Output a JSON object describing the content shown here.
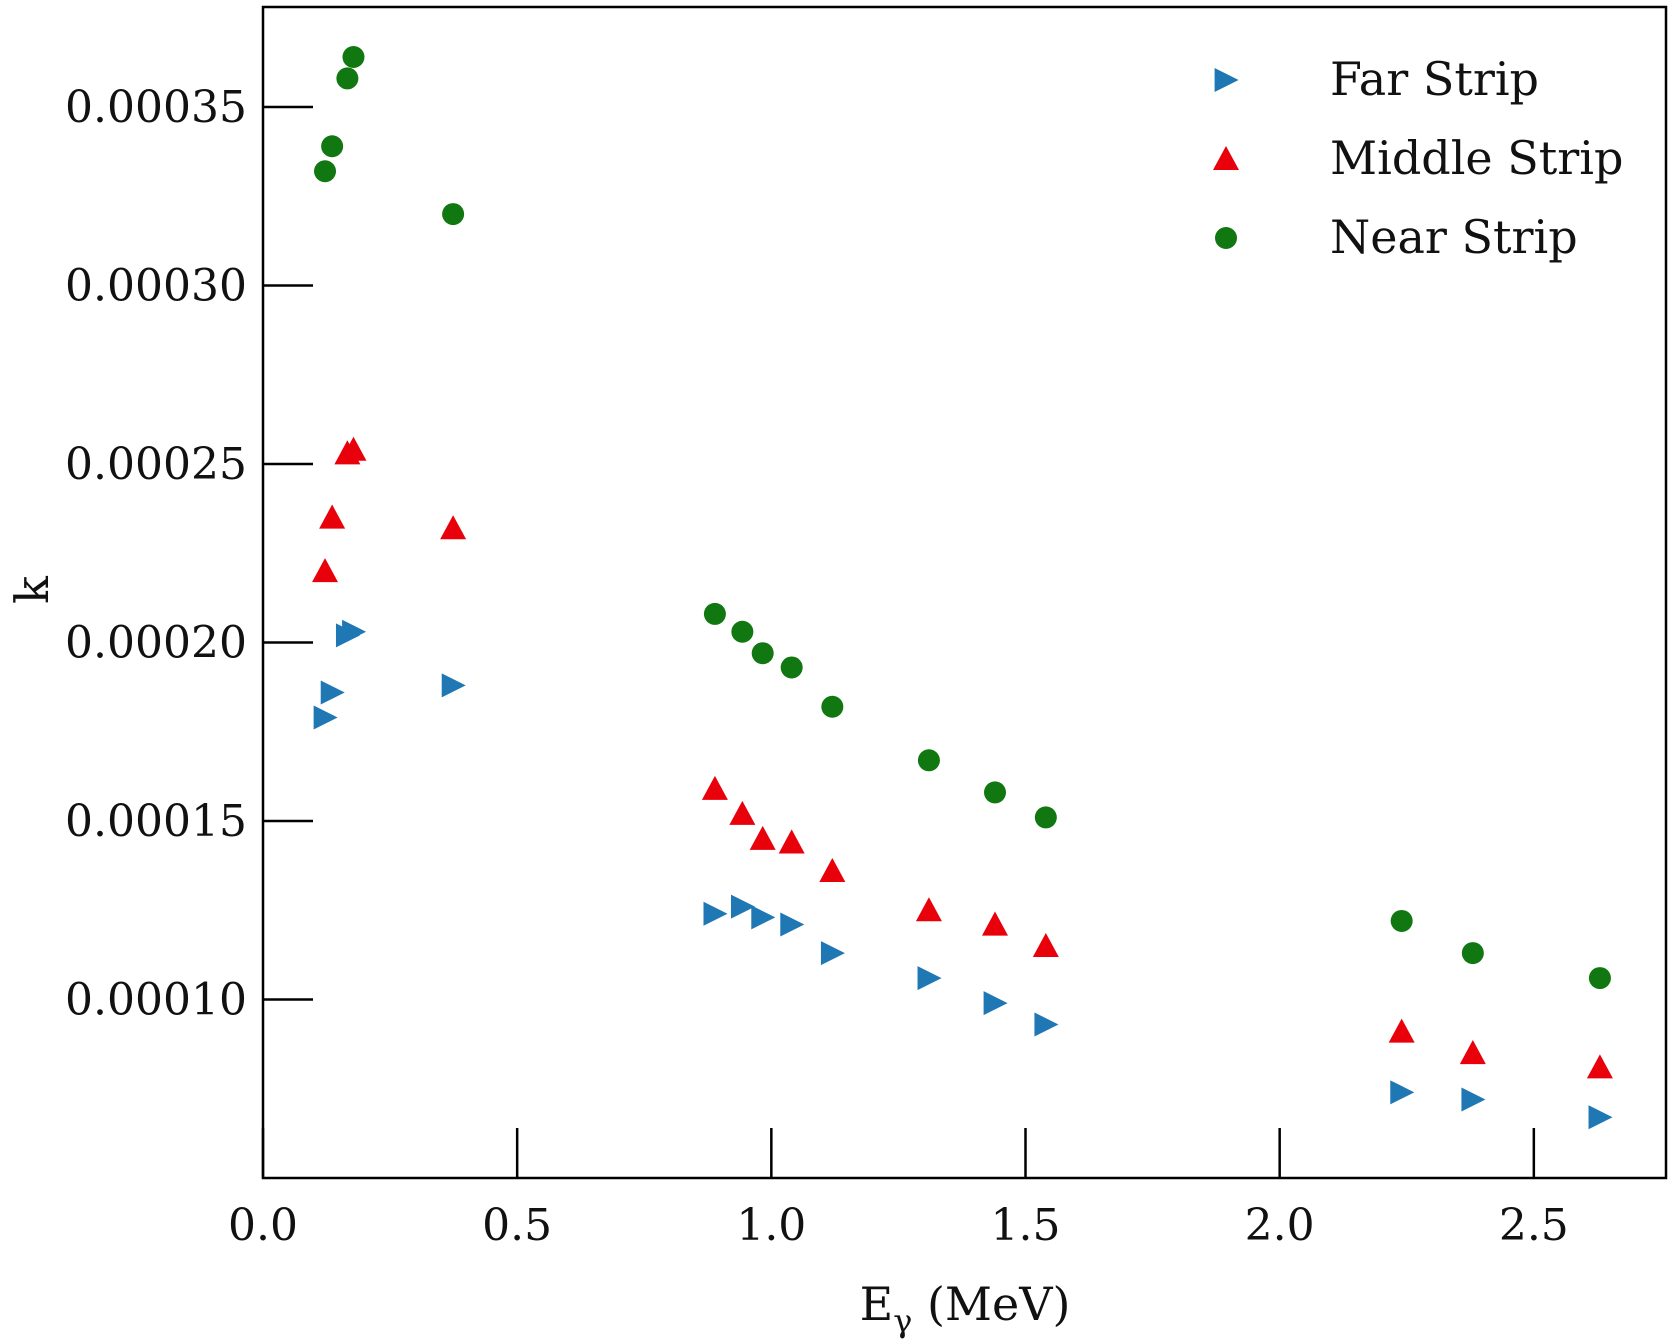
{
  "chart_data": {
    "type": "scatter",
    "title": "",
    "xlabel": "E",
    "xlabel_sub": "γ",
    "xlabel_unit": " (MeV)",
    "ylabel": "k",
    "xlim": [
      0.0,
      2.76
    ],
    "ylim": [
      5e-05,
      0.000378
    ],
    "xticks": [
      0.0,
      0.5,
      1.0,
      1.5,
      2.0,
      2.5
    ],
    "xtick_labels": [
      "0.0",
      "0.5",
      "1.0",
      "1.5",
      "2.0",
      "2.5"
    ],
    "yticks": [
      0.0001,
      0.00015,
      0.0002,
      0.00025,
      0.0003,
      0.00035
    ],
    "ytick_labels": [
      "0.00010",
      "0.00015",
      "0.00020",
      "0.00025",
      "0.00030",
      "0.00035"
    ],
    "grid": false,
    "legend_position": "top-right",
    "series": [
      {
        "name": "Far Strip",
        "marker": "triangle-right",
        "color": "#1f77b4",
        "x": [
          0.122,
          0.136,
          0.166,
          0.178,
          0.374,
          0.889,
          0.943,
          0.983,
          1.04,
          1.12,
          1.31,
          1.44,
          1.54,
          2.24,
          2.38,
          2.63
        ],
        "y": [
          0.000179,
          0.000186,
          0.000202,
          0.000203,
          0.000188,
          0.000124,
          0.000126,
          0.000123,
          0.000121,
          0.000113,
          0.000106,
          9.9e-05,
          9.3e-05,
          7.4e-05,
          7.2e-05,
          6.7e-05
        ]
      },
      {
        "name": "Middle Strip",
        "marker": "triangle-up",
        "color": "#e8000b",
        "x": [
          0.122,
          0.136,
          0.166,
          0.178,
          0.374,
          0.889,
          0.943,
          0.983,
          1.04,
          1.12,
          1.31,
          1.44,
          1.54,
          2.24,
          2.38,
          2.63
        ],
        "y": [
          0.00022,
          0.000235,
          0.000253,
          0.000254,
          0.000232,
          0.000159,
          0.000152,
          0.000145,
          0.000144,
          0.000136,
          0.000125,
          0.000121,
          0.000115,
          9.1e-05,
          8.5e-05,
          8.1e-05
        ]
      },
      {
        "name": "Near Strip",
        "marker": "circle",
        "color": "#117711",
        "x": [
          0.122,
          0.136,
          0.166,
          0.178,
          0.374,
          0.889,
          0.943,
          0.983,
          1.04,
          1.12,
          1.31,
          1.44,
          1.54,
          2.24,
          2.38,
          2.63
        ],
        "y": [
          0.000332,
          0.000339,
          0.000358,
          0.000364,
          0.00032,
          0.000208,
          0.000203,
          0.000197,
          0.000193,
          0.000182,
          0.000167,
          0.000158,
          0.000151,
          0.000122,
          0.000113,
          0.000106
        ]
      }
    ]
  }
}
